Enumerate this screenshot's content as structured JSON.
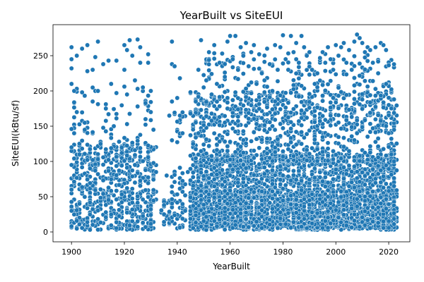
{
  "chart_data": {
    "type": "scatter",
    "title": "YearBuilt vs SiteEUI",
    "xlabel": "YearBuilt",
    "ylabel": "SiteEUI(kBtu/sf)",
    "xlim": [
      1893,
      2028
    ],
    "ylim": [
      -14,
      294
    ],
    "x_ticks": [
      1900,
      1920,
      1940,
      1960,
      1980,
      2000,
      2020
    ],
    "y_ticks": [
      0,
      50,
      100,
      150,
      200,
      250
    ],
    "grid": false,
    "legend": "none",
    "marker_color": "#1f77b4",
    "marker_edge_color": "#ffffff",
    "points": [
      {
        "x": 1900,
        "y": 262
      },
      {
        "x": 1900,
        "y": 245
      },
      {
        "x": 1900,
        "y": 232
      },
      {
        "x": 1900,
        "y": 210
      },
      {
        "x": 1900,
        "y": 146
      },
      {
        "x": 1900,
        "y": 120
      },
      {
        "x": 1900,
        "y": 95
      },
      {
        "x": 1900,
        "y": 60
      },
      {
        "x": 1900,
        "y": 30
      },
      {
        "x": 1900,
        "y": 8
      },
      {
        "x": 1901,
        "y": 200
      },
      {
        "x": 1901,
        "y": 140
      },
      {
        "x": 1902,
        "y": 250
      },
      {
        "x": 1902,
        "y": 170
      },
      {
        "x": 1903,
        "y": 110
      },
      {
        "x": 1903,
        "y": 40
      },
      {
        "x": 1904,
        "y": 260
      },
      {
        "x": 1904,
        "y": 198
      },
      {
        "x": 1905,
        "y": 145
      },
      {
        "x": 1906,
        "y": 265
      },
      {
        "x": 1906,
        "y": 228
      },
      {
        "x": 1907,
        "y": 90
      },
      {
        "x": 1908,
        "y": 230
      },
      {
        "x": 1908,
        "y": 185
      },
      {
        "x": 1909,
        "y": 248
      },
      {
        "x": 1910,
        "y": 270
      },
      {
        "x": 1910,
        "y": 200
      },
      {
        "x": 1911,
        "y": 125
      },
      {
        "x": 1912,
        "y": 238
      },
      {
        "x": 1913,
        "y": 175
      },
      {
        "x": 1914,
        "y": 243
      },
      {
        "x": 1915,
        "y": 210
      },
      {
        "x": 1916,
        "y": 150
      },
      {
        "x": 1917,
        "y": 243
      },
      {
        "x": 1918,
        "y": 128
      },
      {
        "x": 1920,
        "y": 265
      },
      {
        "x": 1920,
        "y": 230
      },
      {
        "x": 1921,
        "y": 258
      },
      {
        "x": 1921,
        "y": 195
      },
      {
        "x": 1922,
        "y": 272
      },
      {
        "x": 1923,
        "y": 250
      },
      {
        "x": 1924,
        "y": 215
      },
      {
        "x": 1925,
        "y": 273
      },
      {
        "x": 1925,
        "y": 178
      },
      {
        "x": 1926,
        "y": 262
      },
      {
        "x": 1926,
        "y": 240
      },
      {
        "x": 1927,
        "y": 205
      },
      {
        "x": 1928,
        "y": 160
      },
      {
        "x": 1929,
        "y": 252
      },
      {
        "x": 1929,
        "y": 240
      },
      {
        "x": 1930,
        "y": 200
      },
      {
        "x": 1930,
        "y": 170
      },
      {
        "x": 1931,
        "y": 145
      },
      {
        "x": 1932,
        "y": 85
      },
      {
        "x": 1935,
        "y": 38
      },
      {
        "x": 1935,
        "y": 25
      },
      {
        "x": 1936,
        "y": 80
      },
      {
        "x": 1937,
        "y": 165
      },
      {
        "x": 1938,
        "y": 270
      },
      {
        "x": 1938,
        "y": 238
      },
      {
        "x": 1938,
        "y": 185
      },
      {
        "x": 1938,
        "y": 130
      },
      {
        "x": 1939,
        "y": 235
      },
      {
        "x": 1940,
        "y": 190
      },
      {
        "x": 1941,
        "y": 218
      },
      {
        "x": 1941,
        "y": 165
      },
      {
        "x": 1942,
        "y": 140
      },
      {
        "x": 1944,
        "y": 85
      },
      {
        "x": 1945,
        "y": 168
      },
      {
        "x": 1946,
        "y": 125
      },
      {
        "x": 1947,
        "y": 185
      },
      {
        "x": 1948,
        "y": 230
      },
      {
        "x": 1948,
        "y": 140
      },
      {
        "x": 1949,
        "y": 272
      },
      {
        "x": 1950,
        "y": 205
      },
      {
        "x": 1951,
        "y": 215
      },
      {
        "x": 1952,
        "y": 255
      },
      {
        "x": 1953,
        "y": 195
      },
      {
        "x": 1954,
        "y": 265
      },
      {
        "x": 1955,
        "y": 210
      },
      {
        "x": 1956,
        "y": 240
      },
      {
        "x": 1957,
        "y": 253
      },
      {
        "x": 1958,
        "y": 220
      },
      {
        "x": 1959,
        "y": 270
      },
      {
        "x": 1960,
        "y": 278
      },
      {
        "x": 1961,
        "y": 245
      },
      {
        "x": 1962,
        "y": 278
      },
      {
        "x": 1963,
        "y": 230
      },
      {
        "x": 1964,
        "y": 262
      },
      {
        "x": 1965,
        "y": 250
      },
      {
        "x": 1966,
        "y": 268
      },
      {
        "x": 1967,
        "y": 235
      },
      {
        "x": 1968,
        "y": 255
      },
      {
        "x": 1969,
        "y": 265
      },
      {
        "x": 1970,
        "y": 210
      },
      {
        "x": 1971,
        "y": 252
      },
      {
        "x": 1972,
        "y": 225
      },
      {
        "x": 1973,
        "y": 215
      },
      {
        "x": 1974,
        "y": 260
      },
      {
        "x": 1975,
        "y": 238
      },
      {
        "x": 1976,
        "y": 200
      },
      {
        "x": 1977,
        "y": 265
      },
      {
        "x": 1978,
        "y": 230
      },
      {
        "x": 1979,
        "y": 262
      },
      {
        "x": 1980,
        "y": 279
      },
      {
        "x": 1981,
        "y": 245
      },
      {
        "x": 1982,
        "y": 230
      },
      {
        "x": 1983,
        "y": 278
      },
      {
        "x": 1984,
        "y": 255
      },
      {
        "x": 1985,
        "y": 268
      },
      {
        "x": 1986,
        "y": 240
      },
      {
        "x": 1987,
        "y": 278
      },
      {
        "x": 1988,
        "y": 262
      },
      {
        "x": 1989,
        "y": 250
      },
      {
        "x": 1990,
        "y": 255
      },
      {
        "x": 1991,
        "y": 230
      },
      {
        "x": 1992,
        "y": 210
      },
      {
        "x": 1993,
        "y": 225
      },
      {
        "x": 1995,
        "y": 255
      },
      {
        "x": 1996,
        "y": 240
      },
      {
        "x": 1997,
        "y": 262
      },
      {
        "x": 1998,
        "y": 245
      },
      {
        "x": 1999,
        "y": 230
      },
      {
        "x": 2000,
        "y": 265
      },
      {
        "x": 2001,
        "y": 250
      },
      {
        "x": 2002,
        "y": 262
      },
      {
        "x": 2003,
        "y": 268
      },
      {
        "x": 2004,
        "y": 240
      },
      {
        "x": 2005,
        "y": 258
      },
      {
        "x": 2006,
        "y": 230
      },
      {
        "x": 2007,
        "y": 270
      },
      {
        "x": 2008,
        "y": 280
      },
      {
        "x": 2009,
        "y": 275
      },
      {
        "x": 2010,
        "y": 268
      },
      {
        "x": 2011,
        "y": 255
      },
      {
        "x": 2012,
        "y": 262
      },
      {
        "x": 2013,
        "y": 258
      },
      {
        "x": 2014,
        "y": 240
      },
      {
        "x": 2015,
        "y": 262
      },
      {
        "x": 2016,
        "y": 225
      },
      {
        "x": 2017,
        "y": 268
      },
      {
        "x": 2018,
        "y": 265
      },
      {
        "x": 2019,
        "y": 258
      },
      {
        "x": 2019,
        "y": 210
      },
      {
        "x": 2020,
        "y": 180
      },
      {
        "x": 2020,
        "y": 140
      },
      {
        "x": 2021,
        "y": 110
      },
      {
        "x": 2022,
        "y": 145
      },
      {
        "x": 2022,
        "y": 100
      },
      {
        "x": 2022,
        "y": 65
      }
    ],
    "clusters": [
      {
        "x_range": [
          1900,
          1932
        ],
        "y_range": [
          3,
          125
        ],
        "count": 550
      },
      {
        "x_range": [
          1900,
          1931
        ],
        "y_range": [
          100,
          210
        ],
        "count": 90
      },
      {
        "x_range": [
          1934,
          1938
        ],
        "y_range": [
          10,
          45
        ],
        "count": 25
      },
      {
        "x_range": [
          1937,
          1943
        ],
        "y_range": [
          5,
          95
        ],
        "count": 55
      },
      {
        "x_range": [
          1937,
          1943
        ],
        "y_range": [
          125,
          175
        ],
        "count": 15
      },
      {
        "x_range": [
          1945,
          2023
        ],
        "y_range": [
          3,
          110
        ],
        "count": 2200
      },
      {
        "x_range": [
          1945,
          2023
        ],
        "y_range": [
          5,
          60
        ],
        "count": 900
      },
      {
        "x_range": [
          1945,
          2023
        ],
        "y_range": [
          100,
          200
        ],
        "count": 700
      },
      {
        "x_range": [
          1950,
          2022
        ],
        "y_range": [
          150,
          255
        ],
        "count": 300
      }
    ]
  }
}
